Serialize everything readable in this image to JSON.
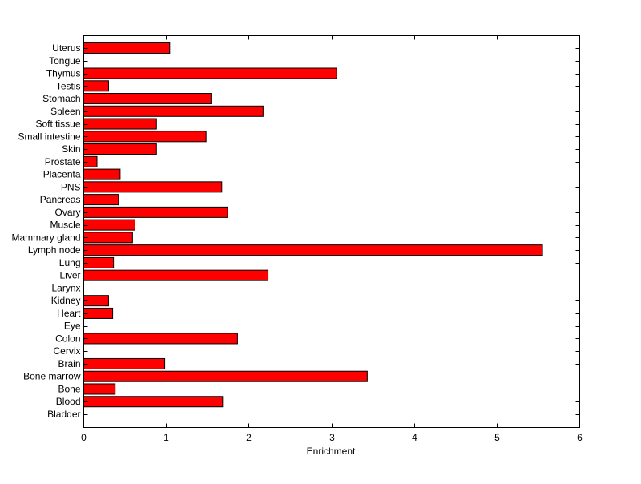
{
  "chart_data": {
    "type": "bar",
    "orientation": "horizontal",
    "title": "",
    "xlabel": "Enrichment",
    "ylabel": "",
    "xlim": [
      0,
      6
    ],
    "xticks": [
      0,
      1,
      2,
      3,
      4,
      5,
      6
    ],
    "grid": false,
    "bar_color": "#ff0000",
    "categories": [
      "Bladder",
      "Blood",
      "Bone",
      "Bone marrow",
      "Brain",
      "Cervix",
      "Colon",
      "Eye",
      "Heart",
      "Kidney",
      "Larynx",
      "Liver",
      "Lung",
      "Lymph node",
      "Mammary gland",
      "Muscle",
      "Ovary",
      "Pancreas",
      "PNS",
      "Placenta",
      "Prostate",
      "Skin",
      "Small intestine",
      "Soft tissue",
      "Spleen",
      "Stomach",
      "Testis",
      "Thymus",
      "Tongue",
      "Uterus"
    ],
    "values": [
      0,
      1.68,
      0.38,
      3.43,
      0.98,
      0,
      1.86,
      0,
      0.35,
      0.3,
      0,
      2.23,
      0.36,
      5.55,
      0.59,
      0.62,
      1.74,
      0.42,
      1.67,
      0.44,
      0.16,
      0.88,
      1.48,
      0.88,
      2.17,
      1.54,
      0.3,
      3.06,
      0,
      1.04
    ]
  }
}
